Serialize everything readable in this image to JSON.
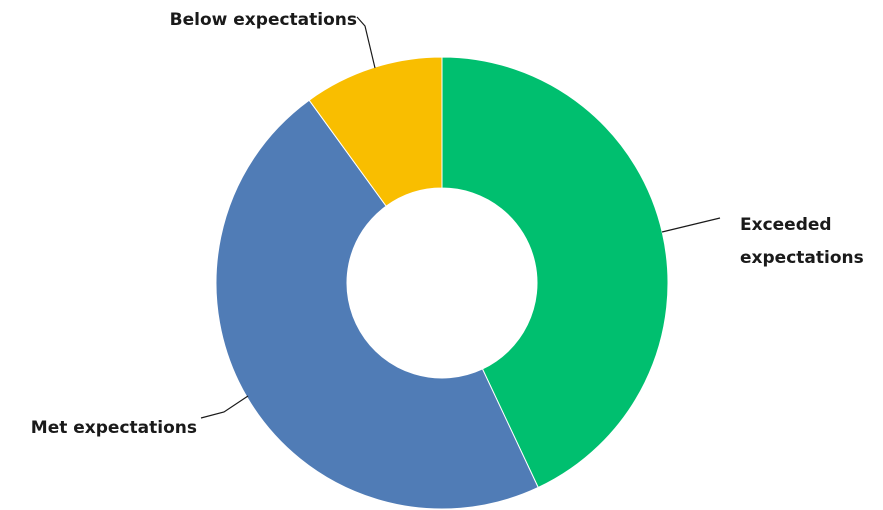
{
  "chart_data": {
    "type": "pie",
    "variant": "donut",
    "title": "",
    "slices": [
      {
        "label": "Exceeded expectations",
        "label_lines": [
          "Exceeded",
          "expectations"
        ],
        "value": 43,
        "color": "#00BF6F"
      },
      {
        "label": "Met expectations",
        "label_lines": [
          "Met expectations"
        ],
        "value": 47,
        "color": "#507CB6"
      },
      {
        "label": "Below expectations",
        "label_lines": [
          "Below expectations"
        ],
        "value": 10,
        "color": "#F9BE00"
      }
    ],
    "legend": "none",
    "data_labels": "outside-with-leader-lines"
  }
}
